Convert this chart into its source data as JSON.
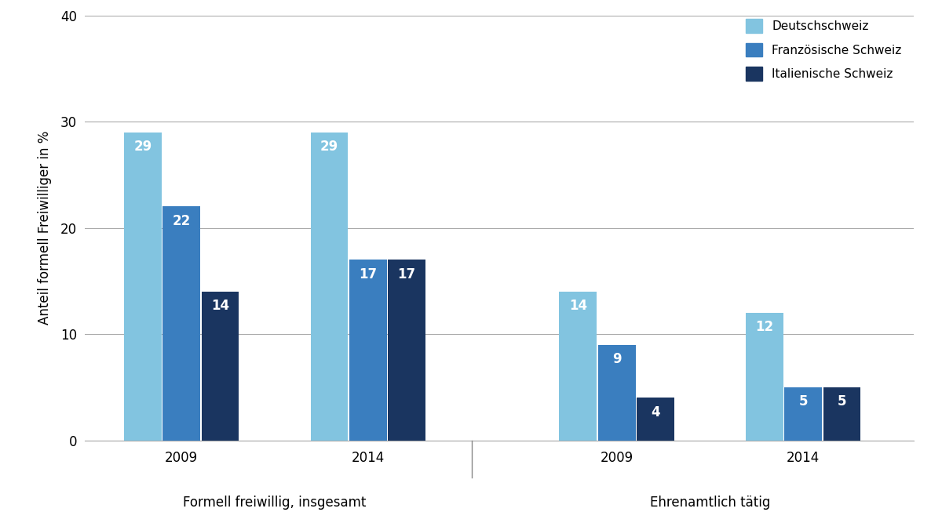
{
  "groups": [
    {
      "label": "Formell freiwillig, insgesamt",
      "years": [
        "2009",
        "2014"
      ],
      "values": {
        "Deutschschweiz": [
          29,
          29
        ],
        "Französische Schweiz": [
          22,
          17
        ],
        "Italienische Schweiz": [
          14,
          17
        ]
      },
      "hatched": [
        false,
        false
      ]
    },
    {
      "label": "Ehrenamtlich tätig",
      "years": [
        "2009",
        "2014"
      ],
      "values": {
        "Deutschschweiz": [
          14,
          12
        ],
        "Französische Schweiz": [
          9,
          5
        ],
        "Italienische Schweiz": [
          4,
          5
        ]
      },
      "hatched": [
        true,
        true
      ]
    }
  ],
  "colors": {
    "Deutschschweiz": "#82C4E0",
    "Französische Schweiz": "#3A7EBF",
    "Italienische Schweiz": "#1A3560"
  },
  "ylabel": "Anteil formell Freiwilliger in %",
  "ylim": [
    0,
    40
  ],
  "yticks": [
    0,
    10,
    20,
    30,
    40
  ],
  "legend_labels": [
    "Deutschschweiz",
    "Französische Schweiz",
    "Italienische Schweiz"
  ],
  "bar_width": 0.28,
  "value_text_color": "white",
  "value_fontsize": 12,
  "year_centers": [
    1.2,
    2.55,
    4.35,
    5.7
  ],
  "group_label_centers": [
    1.875,
    5.025
  ],
  "group_labels": [
    "Formell freiwillig, insgesamt",
    "Ehrenamtlich tätig"
  ],
  "year_labels": [
    "2009",
    "2014",
    "2009",
    "2014"
  ],
  "xlim": [
    0.5,
    6.5
  ],
  "sep_x": 3.3
}
